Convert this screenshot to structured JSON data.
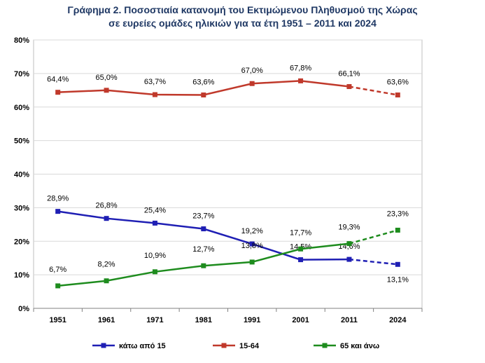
{
  "header": {
    "title_line1": "Γράφημα 2. Ποσοστιαία κατανομή του Εκτιμώμενου Πληθυσμού της Χώρας",
    "title_line2": "σε ευρείες ομάδες ηλικιών για τα έτη 1951 – 2011 και 2024"
  },
  "chart_data": {
    "type": "line",
    "title": "Γράφημα 2. Ποσοστιαία κατανομή του Εκτιμώμενου Πληθυσμού της Χώρας σε ευρείες ομάδες ηλικιών για τα έτη 1951 – 2011 και 2024",
    "categories": [
      "1951",
      "1961",
      "1971",
      "1981",
      "1991",
      "2001",
      "2011",
      "2024"
    ],
    "ylim": [
      0,
      80
    ],
    "yticks": [
      0,
      10,
      20,
      30,
      40,
      50,
      60,
      70,
      80
    ],
    "ytick_labels": [
      "0%",
      "10%",
      "20%",
      "30%",
      "40%",
      "50%",
      "60%",
      "70%",
      "80%"
    ],
    "grid": true,
    "legend_position": "bottom",
    "dashed_last_segment": true,
    "series": [
      {
        "name": "κάτω από 15",
        "color": "#1f1fb4",
        "values": [
          28.9,
          26.8,
          25.4,
          23.7,
          19.2,
          14.5,
          14.6,
          13.1
        ],
        "labels": [
          "28,9%",
          "26,8%",
          "25,4%",
          "23,7%",
          "19,2%",
          "14,5%",
          "14,6%",
          "13,1%"
        ]
      },
      {
        "name": "15-64",
        "color": "#c0392b",
        "values": [
          64.4,
          65.0,
          63.7,
          63.6,
          67.0,
          67.8,
          66.1,
          63.6
        ],
        "labels": [
          "64,4%",
          "65,0%",
          "63,7%",
          "63,6%",
          "67,0%",
          "67,8%",
          "66,1%",
          "63,6%"
        ]
      },
      {
        "name": "65 και άνω",
        "color": "#1e8c1e",
        "values": [
          6.7,
          8.2,
          10.9,
          12.7,
          13.8,
          17.7,
          19.3,
          23.3
        ],
        "labels": [
          "6,7%",
          "8,2%",
          "10,9%",
          "12,7%",
          "13,8%",
          "17,7%",
          "19,3%",
          "23,3%"
        ]
      }
    ]
  }
}
